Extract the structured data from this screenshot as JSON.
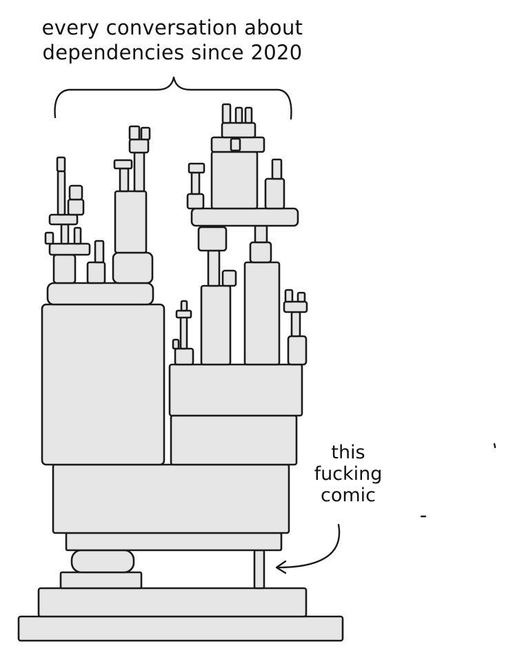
{
  "comic": {
    "caption_line_1": "every conversation about",
    "caption_line_2": "dependencies since 2020",
    "callout_line_1": "this",
    "callout_line_2": "fucking",
    "callout_line_3": "comic",
    "ink_color": "#1a1a1a",
    "block_fill": "#e6e6e6"
  }
}
